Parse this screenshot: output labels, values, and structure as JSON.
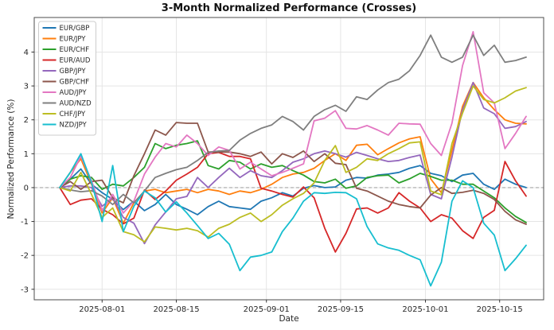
{
  "chart_data": {
    "type": "line",
    "title": "3-Month Normalized Performance (Crosses)",
    "xlabel": "Date",
    "ylabel": "Normalized Performance (%)",
    "grid": true,
    "zero_line_dashed": true,
    "legend_position": "upper-left",
    "background": "#ffffff",
    "grid_color": "#e5e5e5",
    "zero_line_color": "#909090",
    "spine_color": "#4d4d4d",
    "ylim": [
      -3.31,
      5.02
    ],
    "y_ticks": [
      -3,
      -2,
      -1,
      0,
      1,
      2,
      3,
      4
    ],
    "x_ticks": [
      "2025-08-01",
      "2025-08-15",
      "2025-09-01",
      "2025-09-15",
      "2025-10-01",
      "2025-10-15"
    ],
    "x": [
      "2025-07-24",
      "2025-07-26",
      "2025-07-28",
      "2025-07-30",
      "2025-08-01",
      "2025-08-03",
      "2025-08-05",
      "2025-08-07",
      "2025-08-09",
      "2025-08-11",
      "2025-08-13",
      "2025-08-15",
      "2025-08-17",
      "2025-08-19",
      "2025-08-21",
      "2025-08-23",
      "2025-08-25",
      "2025-08-27",
      "2025-08-29",
      "2025-08-31",
      "2025-09-02",
      "2025-09-04",
      "2025-09-06",
      "2025-09-08",
      "2025-09-10",
      "2025-09-12",
      "2025-09-14",
      "2025-09-16",
      "2025-09-18",
      "2025-09-20",
      "2025-09-22",
      "2025-09-24",
      "2025-09-26",
      "2025-09-28",
      "2025-09-30",
      "2025-10-02",
      "2025-10-04",
      "2025-10-06",
      "2025-10-08",
      "2025-10-10",
      "2025-10-12",
      "2025-10-14",
      "2025-10-16",
      "2025-10-18",
      "2025-10-20"
    ],
    "series": [
      {
        "name": "EUR/GBP",
        "color": "#1f77b4",
        "values": [
          0,
          0.25,
          0.55,
          0.1,
          -0.15,
          -0.35,
          -0.65,
          -0.4,
          -0.68,
          -0.5,
          -0.2,
          -0.5,
          -0.64,
          -0.8,
          -0.56,
          -0.4,
          -0.56,
          -0.6,
          -0.64,
          -0.4,
          -0.3,
          -0.15,
          -0.25,
          -0.02,
          0.06,
          0.0,
          0.02,
          0.22,
          0.3,
          0.28,
          0.37,
          0.4,
          0.45,
          0.57,
          0.65,
          0.42,
          0.35,
          0.18,
          0.37,
          0.42,
          0.1,
          -0.05,
          0.25,
          0.1,
          0.0
        ]
      },
      {
        "name": "EUR/JPY",
        "color": "#ff7f0e",
        "values": [
          0,
          0.45,
          0.85,
          0.1,
          -0.75,
          -0.3,
          -1.05,
          -0.45,
          -0.1,
          -0.05,
          -0.15,
          -0.1,
          -0.05,
          -0.15,
          -0.05,
          -0.1,
          -0.2,
          -0.1,
          -0.15,
          -0.05,
          0.1,
          0.3,
          0.4,
          0.45,
          0.57,
          0.8,
          1.0,
          0.8,
          1.25,
          1.28,
          0.97,
          1.15,
          1.32,
          1.44,
          1.5,
          0.26,
          -0.15,
          1.1,
          2.4,
          3.1,
          2.65,
          2.3,
          2.0,
          1.9,
          1.88
        ]
      },
      {
        "name": "EUR/CHF",
        "color": "#2ca02c",
        "values": [
          0,
          0.25,
          0.35,
          0.3,
          -0.05,
          0.1,
          0.05,
          0.3,
          0.6,
          1.3,
          1.15,
          1.25,
          1.3,
          1.38,
          0.65,
          0.55,
          0.8,
          0.75,
          0.55,
          0.7,
          0.6,
          0.65,
          0.5,
          0.37,
          0.18,
          0.14,
          0.25,
          -0.02,
          0.05,
          0.3,
          0.35,
          0.37,
          0.14,
          0.26,
          0.42,
          0.33,
          0.22,
          0.22,
          0.1,
          0.1,
          -0.1,
          -0.3,
          -0.6,
          -0.85,
          -1.03
        ]
      },
      {
        "name": "EUR/AUD",
        "color": "#d62728",
        "values": [
          0,
          -0.5,
          -0.37,
          -0.33,
          -0.64,
          -0.8,
          -1.07,
          -0.9,
          -0.07,
          -0.35,
          -0.1,
          0.22,
          0.4,
          0.6,
          1.0,
          1.04,
          0.92,
          0.92,
          0.85,
          -0.02,
          -0.1,
          -0.2,
          -0.28,
          0.02,
          -0.3,
          -1.2,
          -1.9,
          -1.35,
          -0.63,
          -0.6,
          -0.75,
          -0.6,
          -0.15,
          -0.4,
          -0.6,
          -1.0,
          -0.8,
          -0.9,
          -1.27,
          -1.5,
          -0.88,
          -0.67,
          0.77,
          0.2,
          -0.25
        ]
      },
      {
        "name": "GBP/JPY",
        "color": "#9467bd",
        "values": [
          0,
          0.05,
          0.05,
          0.0,
          -0.55,
          -0.3,
          -0.88,
          -1.05,
          -1.65,
          -1.1,
          -0.72,
          -0.33,
          -0.26,
          0.3,
          0.0,
          0.3,
          0.57,
          0.3,
          0.5,
          0.35,
          0.3,
          0.5,
          0.75,
          0.85,
          1.0,
          1.08,
          1.0,
          0.9,
          1.04,
          0.95,
          0.85,
          0.77,
          0.8,
          0.89,
          0.96,
          -0.2,
          -0.33,
          0.9,
          2.3,
          3.1,
          2.35,
          2.18,
          1.75,
          1.8,
          1.95
        ]
      },
      {
        "name": "GBP/CHF",
        "color": "#8c564b",
        "values": [
          0,
          0.18,
          -0.05,
          0.18,
          0.22,
          -0.3,
          -0.45,
          0.35,
          1.0,
          1.7,
          1.55,
          1.92,
          1.9,
          1.9,
          1.05,
          1.05,
          1.05,
          1.0,
          0.92,
          1.05,
          0.7,
          1.0,
          0.89,
          1.08,
          0.77,
          1.0,
          0.72,
          0.68,
          -0.02,
          -0.1,
          -0.25,
          -0.4,
          -0.5,
          -0.56,
          -0.6,
          -0.22,
          0.0,
          -0.17,
          -0.14,
          -0.08,
          -0.17,
          -0.35,
          -0.7,
          -0.95,
          -1.08
        ]
      },
      {
        "name": "AUD/JPY",
        "color": "#e377c2",
        "values": [
          0,
          0.3,
          0.93,
          0.2,
          -0.68,
          -0.2,
          -0.75,
          -0.4,
          0.4,
          0.9,
          1.3,
          1.2,
          1.55,
          1.3,
          0.95,
          1.2,
          1.1,
          0.55,
          0.75,
          0.55,
          0.35,
          0.45,
          0.57,
          0.7,
          1.97,
          2.05,
          2.27,
          1.75,
          1.73,
          1.83,
          1.7,
          1.55,
          1.9,
          1.88,
          1.87,
          1.3,
          0.95,
          1.9,
          3.6,
          4.6,
          2.8,
          2.5,
          1.15,
          1.6,
          2.1
        ]
      },
      {
        "name": "AUD/NZD",
        "color": "#7f7f7f",
        "values": [
          0,
          -0.07,
          -0.12,
          -0.09,
          -0.25,
          -0.5,
          -0.2,
          -0.45,
          -0.1,
          0.3,
          0.42,
          0.53,
          0.6,
          0.8,
          1.04,
          1.08,
          1.1,
          1.4,
          1.6,
          1.75,
          1.85,
          2.1,
          1.95,
          1.7,
          2.1,
          2.3,
          2.43,
          2.25,
          2.68,
          2.6,
          2.88,
          3.1,
          3.2,
          3.45,
          3.9,
          4.5,
          3.85,
          3.7,
          3.85,
          4.5,
          3.9,
          4.2,
          3.7,
          3.75,
          3.85
        ]
      },
      {
        "name": "CHF/JPY",
        "color": "#bcbd22",
        "values": [
          0,
          -0.1,
          0.45,
          -0.2,
          -0.88,
          -0.6,
          -1.3,
          -1.39,
          -1.6,
          -1.16,
          -1.2,
          -1.25,
          -1.2,
          -1.27,
          -1.46,
          -1.2,
          -1.08,
          -0.88,
          -0.75,
          -1.0,
          -0.8,
          -0.52,
          -0.33,
          -0.17,
          0.14,
          0.8,
          1.24,
          0.45,
          0.6,
          0.85,
          0.8,
          1.0,
          1.15,
          1.32,
          1.35,
          -0.1,
          -0.21,
          1.3,
          2.2,
          3.0,
          2.6,
          2.5,
          2.65,
          2.85,
          2.95
        ]
      },
      {
        "name": "NZD/JPY",
        "color": "#17becf",
        "values": [
          0,
          0.45,
          1.0,
          0.15,
          -1.0,
          0.65,
          -1.3,
          -0.55,
          -0.1,
          -0.3,
          -0.72,
          -0.42,
          -0.75,
          -1.12,
          -1.5,
          -1.35,
          -1.67,
          -2.45,
          -2.05,
          -2.0,
          -1.9,
          -1.3,
          -0.9,
          -0.4,
          -0.15,
          -0.17,
          -0.14,
          -0.15,
          -0.33,
          -1.15,
          -1.66,
          -1.78,
          -1.85,
          -2.0,
          -2.13,
          -2.9,
          -2.2,
          -0.4,
          0.2,
          0.0,
          -1.05,
          -1.4,
          -2.45,
          -2.1,
          -1.7
        ]
      }
    ]
  }
}
